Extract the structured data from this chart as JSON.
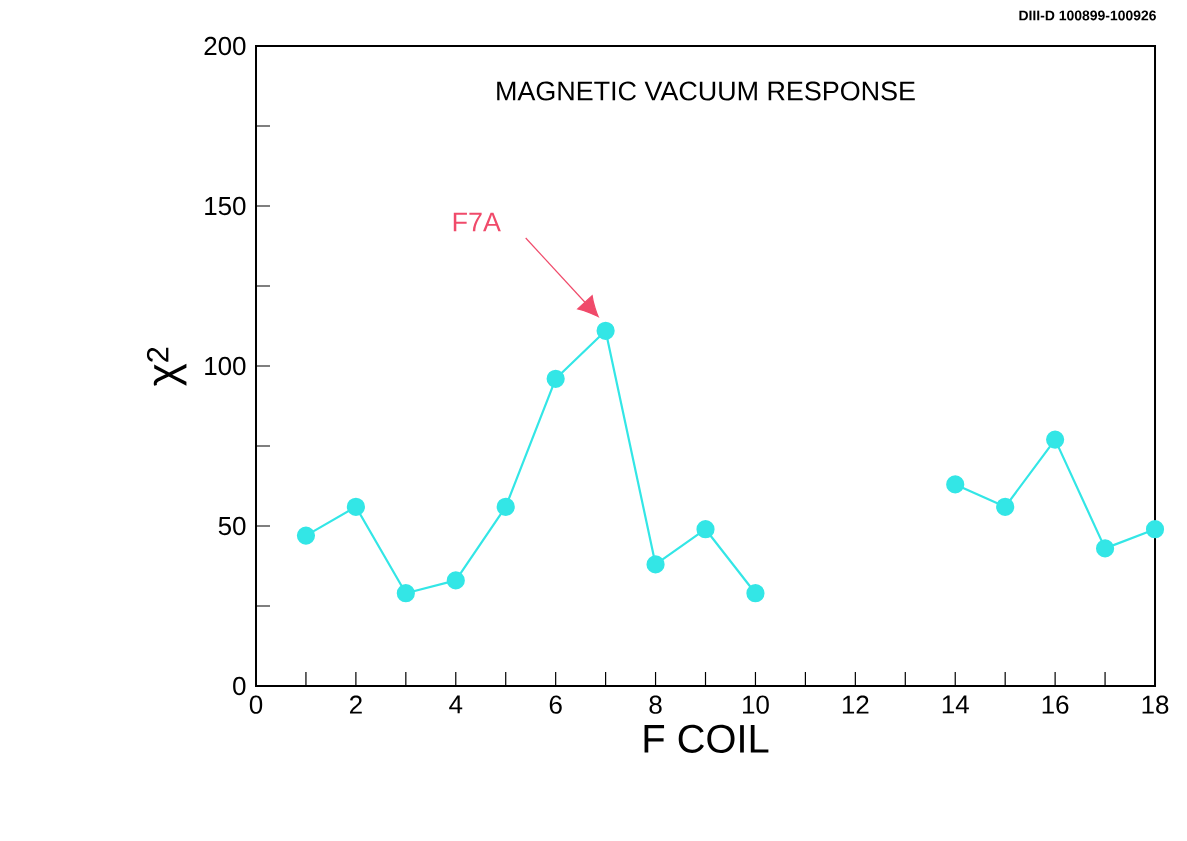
{
  "chart_data": {
    "type": "line",
    "title": "MAGNETIC VACUUM RESPONSE",
    "xlabel": "F COIL",
    "ylabel": "χ$^{2}$",
    "x": [
      1,
      2,
      3,
      4,
      5,
      6,
      7,
      8,
      9,
      10,
      11,
      12,
      13,
      14,
      15,
      16,
      17,
      18
    ],
    "series": [
      {
        "color": "#33e6e6",
        "values": [
          47,
          56,
          29,
          33,
          56,
          96,
          111,
          38,
          49,
          29,
          null,
          null,
          null,
          63,
          56,
          77,
          43,
          49
        ]
      }
    ],
    "xlim": [
      0,
      18
    ],
    "ylim": [
      0,
      200
    ],
    "xticks": [
      0,
      2,
      4,
      6,
      8,
      10,
      12,
      14,
      16,
      18
    ],
    "yticks": [
      0,
      50,
      100,
      150,
      200
    ],
    "marker": "circle",
    "line_style": "solid",
    "annotations": [
      "F7A",
      "DIII-D 100899-100926"
    ]
  }
}
